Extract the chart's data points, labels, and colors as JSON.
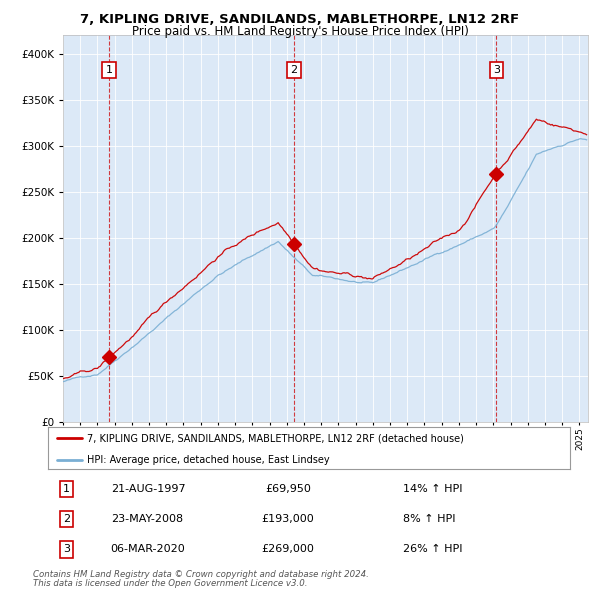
{
  "title1": "7, KIPLING DRIVE, SANDILANDS, MABLETHORPE, LN12 2RF",
  "title2": "Price paid vs. HM Land Registry's House Price Index (HPI)",
  "legend_red": "7, KIPLING DRIVE, SANDILANDS, MABLETHORPE, LN12 2RF (detached house)",
  "legend_blue": "HPI: Average price, detached house, East Lindsey",
  "sale1_date": "21-AUG-1997",
  "sale1_price": 69950,
  "sale1_hpi": "14% ↑ HPI",
  "sale2_date": "23-MAY-2008",
  "sale2_price": 193000,
  "sale2_hpi": "8% ↑ HPI",
  "sale3_date": "06-MAR-2020",
  "sale3_price": 269000,
  "sale3_hpi": "26% ↑ HPI",
  "footer1": "Contains HM Land Registry data © Crown copyright and database right 2024.",
  "footer2": "This data is licensed under the Open Government Licence v3.0.",
  "bg_color": "#dce9f7",
  "red_color": "#cc0000",
  "blue_color": "#7aafd4",
  "ylim": [
    0,
    420000
  ],
  "xmin": 1995.0,
  "xmax": 2025.5,
  "sale1_t": 1997.6388,
  "sale2_t": 2008.3888,
  "sale3_t": 2020.1666
}
